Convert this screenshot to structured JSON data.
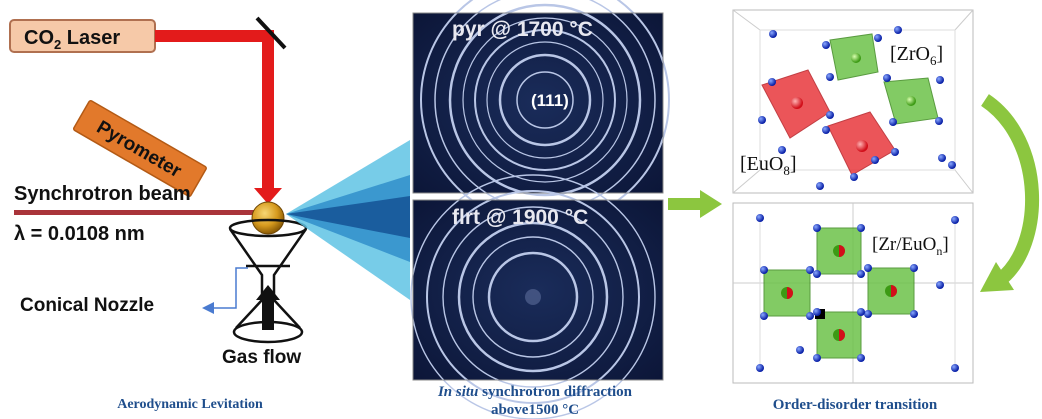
{
  "left_panel": {
    "laser_label": "CO",
    "laser_sub": "2",
    "laser_label_rest": " Laser",
    "pyrometer_label": "Pyrometer",
    "beam_label": "Synchrotron beam",
    "wavelength_label": "λ = 0.0108 nm",
    "nozzle_label": "Conical Nozzle",
    "gas_label": "Gas flow",
    "caption": "Aerodynamic Levitation"
  },
  "middle_panel": {
    "top_pattern_label": "pyr @ 1700 °C",
    "reflection_label": "(111)",
    "bottom_pattern_label": "flrt @ 1900 °C",
    "caption_italic": "In situ",
    "caption_rest": " synchrotron  diffraction",
    "caption_line2": "above1500 °C"
  },
  "right_panel": {
    "zro_label_main": "[ZrO",
    "zro_label_sub": "6",
    "zro_label_end": "]",
    "euo_label_main": "[EuO",
    "euo_label_sub": "8",
    "euo_label_end": "]",
    "zreu_label_main": "[Zr/EuO",
    "zreu_label_sub": "n",
    "zreu_label_end": "]",
    "caption": "Order-disorder  transition"
  },
  "colors": {
    "laser_red": "#e31b1b",
    "label_box_fill": "#f6c9a8",
    "pyrometer_orange": "#e2792b",
    "caption_blue": "#1f4e8c",
    "arrow_green": "#8cc63f",
    "octa_green": "#6dc24a",
    "octa_red": "#e8383d"
  }
}
